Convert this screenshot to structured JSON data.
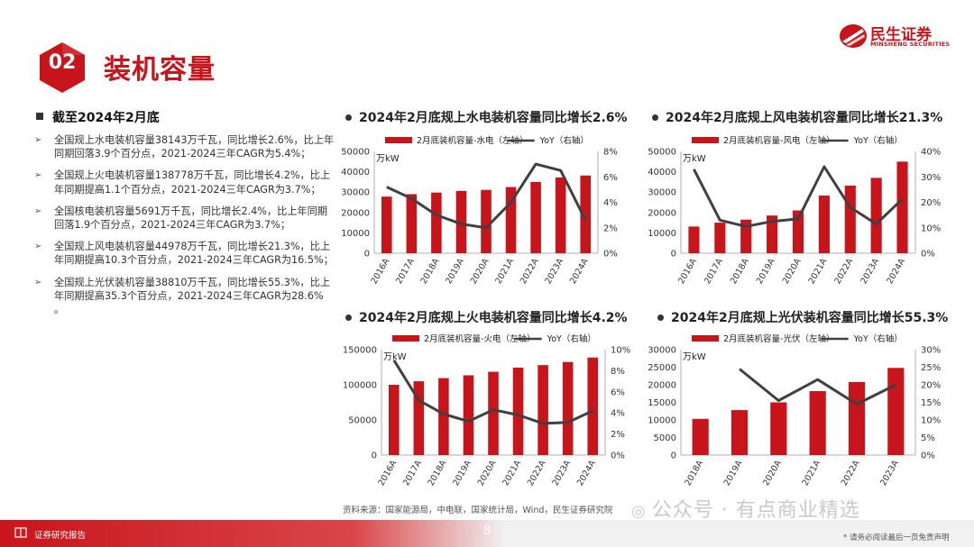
{
  "section": {
    "number": "02",
    "title": "装机容量"
  },
  "logo": {
    "cn": "民生证券",
    "en": "MINSHENG SECURITIES"
  },
  "left": {
    "heading": "截至2024年2月底",
    "bullets": [
      "全国规上水电装机容量38143万千瓦，同比增长2.6%，比上年同期回落3.9个百分点，2021-2024三年CAGR为5.4%；",
      "全国规上火电装机容量138778万千瓦，同比增长4.2%，比上年同期提高1.1个百分点，2021-2024三年CAGR为3.7%；",
      "全国核电装机容量5691万千瓦，同比增长2.4%，比上年同期回落1.9个百分点，2021-2024三年CAGR为3.7%；",
      "全国规上风电装机容量44978万千瓦，同比增长21.3%，比上年同期提高10.3个百分点，2021-2024三年CAGR为16.5%；",
      "全国规上光伏装机容量38810万千瓦，同比增长55.3%，比上年同期提高35.3个百分点，2021-2024三年CAGR为28.6% 。"
    ]
  },
  "colors": {
    "bar": "#c8151b",
    "line": "#404040",
    "accent": "#c8151b"
  },
  "chart_data": [
    {
      "type": "bar",
      "title": "2024年2月底规上水电装机容量同比增长2.6%",
      "unit_label": "万kW",
      "categories": [
        "2016A",
        "2017A",
        "2018A",
        "2019A",
        "2020A",
        "2021A",
        "2022A",
        "2023A",
        "2024A"
      ],
      "series": [
        {
          "name": "2月底装机容量-水电（左轴）",
          "type": "bar",
          "axis": "left",
          "values": [
            27800,
            29000,
            29800,
            30600,
            31100,
            32500,
            35000,
            37200,
            38143
          ]
        },
        {
          "name": "YoY（右轴）",
          "type": "line",
          "axis": "right",
          "values": [
            5.2,
            4.3,
            3.0,
            2.3,
            2.0,
            4.0,
            7.0,
            6.5,
            2.6
          ]
        }
      ],
      "ylim_left": [
        0,
        50000
      ],
      "yticks_left": [
        0,
        10000,
        20000,
        30000,
        40000,
        50000
      ],
      "ylim_right": [
        0,
        8
      ],
      "yticks_right": [
        "0%",
        "2%",
        "4%",
        "6%",
        "8%"
      ]
    },
    {
      "type": "bar",
      "title": "2024年2月底规上风电装机容量同比增长21.3%",
      "unit_label": "万kW",
      "categories": [
        "2016A",
        "2017A",
        "2018A",
        "2019A",
        "2020A",
        "2021A",
        "2022A",
        "2023A",
        "2024A"
      ],
      "series": [
        {
          "name": "2月底装机容量-风电（左轴）",
          "type": "bar",
          "axis": "left",
          "values": [
            13100,
            15000,
            16500,
            18500,
            21000,
            28300,
            33200,
            37000,
            44978
          ]
        },
        {
          "name": "YoY（右轴）",
          "type": "line",
          "axis": "right",
          "values": [
            33,
            13,
            10.5,
            12.5,
            13.5,
            34,
            18,
            11.5,
            21.3
          ]
        }
      ],
      "ylim_left": [
        0,
        50000
      ],
      "yticks_left": [
        0,
        10000,
        20000,
        30000,
        40000,
        50000
      ],
      "ylim_right": [
        0,
        40
      ],
      "yticks_right": [
        "0%",
        "10%",
        "20%",
        "30%",
        "40%"
      ]
    },
    {
      "type": "bar",
      "title": "2024年2月底规上火电装机容量同比增长4.2%",
      "unit_label": "万kW",
      "categories": [
        "2016A",
        "2017A",
        "2018A",
        "2019A",
        "2020A",
        "2021A",
        "2022A",
        "2023A",
        "2024A"
      ],
      "series": [
        {
          "name": "2月底装机容量-火电（左轴）",
          "type": "bar",
          "axis": "left",
          "values": [
            100000,
            105000,
            109500,
            113500,
            118500,
            124500,
            128000,
            132500,
            138778
          ]
        },
        {
          "name": "YoY（右轴）",
          "type": "line",
          "axis": "right",
          "values": [
            9.0,
            5.2,
            3.9,
            3.2,
            4.3,
            3.8,
            3.0,
            3.1,
            4.2
          ]
        }
      ],
      "ylim_left": [
        0,
        150000
      ],
      "yticks_left": [
        0,
        50000,
        100000,
        150000
      ],
      "ylim_right": [
        0,
        10
      ],
      "yticks_right": [
        "0%",
        "2%",
        "4%",
        "6%",
        "8%",
        "10%"
      ]
    },
    {
      "type": "bar",
      "title": "2024年2月底规上光伏装机容量同比增长55.3%",
      "unit_label": "万kW",
      "categories": [
        "2018A",
        "2019A",
        "2020A",
        "2021A",
        "2022A",
        "2023A"
      ],
      "series": [
        {
          "name": "2月底装机容量-光伏（左轴）",
          "type": "bar",
          "axis": "left",
          "values": [
            10300,
            12800,
            15000,
            18200,
            20800,
            24800
          ]
        },
        {
          "name": "YoY（右轴）",
          "type": "line",
          "axis": "right",
          "values": [
            null,
            24.5,
            15.5,
            21.5,
            14.5,
            20.0
          ]
        }
      ],
      "ylim_left": [
        0,
        30000
      ],
      "yticks_left": [
        0,
        5000,
        10000,
        15000,
        20000,
        25000,
        30000
      ],
      "ylim_right": [
        0,
        30
      ],
      "yticks_right": [
        "0%",
        "5%",
        "10%",
        "15%",
        "20%",
        "25%",
        "30%"
      ]
    }
  ],
  "source": "资料来源：国家能源局，中电联，国家统计局，Wind，民生证券研究院",
  "watermark": "公众号 · 有点商业精选",
  "footer": {
    "label": "证券研究报告",
    "page": "8",
    "disclaimer": "* 请务必阅读最后一页免责声明"
  }
}
